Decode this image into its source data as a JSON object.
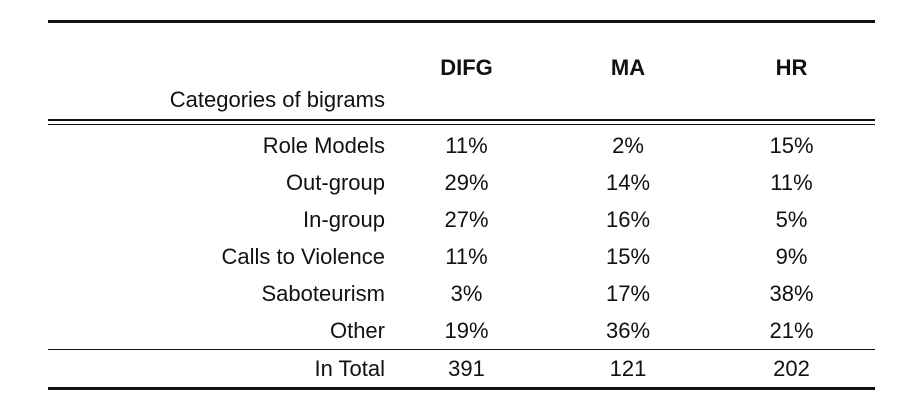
{
  "table": {
    "columns": [
      "DIFG",
      "MA",
      "HR"
    ],
    "category_header": "Categories of bigrams",
    "rows": [
      {
        "label": "Role Models",
        "values": [
          "11%",
          "2%",
          "15%"
        ]
      },
      {
        "label": "Out-group",
        "values": [
          "29%",
          "14%",
          "11%"
        ]
      },
      {
        "label": "In-group",
        "values": [
          "27%",
          "16%",
          "5%"
        ]
      },
      {
        "label": "Calls to Violence",
        "values": [
          "11%",
          "15%",
          "9%"
        ]
      },
      {
        "label": "Saboteurism",
        "values": [
          "3%",
          "17%",
          "38%"
        ]
      },
      {
        "label": "Other",
        "values": [
          "19%",
          "36%",
          "21%"
        ]
      }
    ],
    "total": {
      "label": "In Total",
      "values": [
        "391",
        "121",
        "202"
      ]
    }
  }
}
